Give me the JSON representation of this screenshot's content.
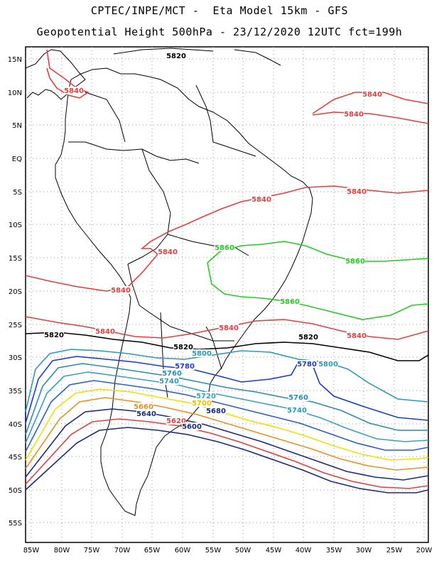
{
  "title_line1": "CPTEC/INPE/MCT -  Eta Model 15km - GFS",
  "title_line2": "Geopotential Height 500hPa - 23/12/2020 12UTC fct=199h",
  "lat_labels": [
    "15N",
    "10N",
    "5N",
    "EQ",
    "5S",
    "10S",
    "15S",
    "20S",
    "25S",
    "30S",
    "35S",
    "40S",
    "45S",
    "50S",
    "55S"
  ],
  "lon_labels": [
    "85W",
    "80W",
    "75W",
    "70W",
    "65W",
    "60W",
    "55W",
    "50W",
    "45W",
    "40W",
    "35W",
    "30W",
    "25W",
    "20W"
  ],
  "contour_labels": [
    {
      "text": "5820",
      "color": "#000000"
    },
    {
      "text": "5840",
      "color": "#e04040"
    },
    {
      "text": "5840",
      "color": "#e04040"
    },
    {
      "text": "5840",
      "color": "#e04040"
    },
    {
      "text": "5840",
      "color": "#e04040"
    },
    {
      "text": "5840",
      "color": "#e04040"
    },
    {
      "text": "5840",
      "color": "#e04040"
    },
    {
      "text": "5840",
      "color": "#e04040"
    },
    {
      "text": "5840",
      "color": "#e04040"
    },
    {
      "text": "5840",
      "color": "#e04040"
    },
    {
      "text": "5840",
      "color": "#e04040"
    },
    {
      "text": "5860",
      "color": "#22cc22"
    },
    {
      "text": "5860",
      "color": "#22cc22"
    },
    {
      "text": "5860",
      "color": "#22cc22"
    },
    {
      "text": "5820",
      "color": "#000000"
    },
    {
      "text": "5820",
      "color": "#000000"
    },
    {
      "text": "5820",
      "color": "#000000"
    },
    {
      "text": "5800",
      "color": "#2a9ab8"
    },
    {
      "text": "5800",
      "color": "#2a9ab8"
    },
    {
      "text": "5780",
      "color": "#1a3cd0"
    },
    {
      "text": "5780",
      "color": "#1a3cd0"
    },
    {
      "text": "5760",
      "color": "#2a8cb0"
    },
    {
      "text": "5760",
      "color": "#2a8cb0"
    },
    {
      "text": "5740",
      "color": "#2a9ab8"
    },
    {
      "text": "5740",
      "color": "#2a9ab8"
    },
    {
      "text": "5720",
      "color": "#3aa0c0"
    },
    {
      "text": "5700",
      "color": "#e8c000"
    },
    {
      "text": "5660",
      "color": "#e89020"
    },
    {
      "text": "5640",
      "color": "#1a2a80"
    },
    {
      "text": "5680",
      "color": "#1a2a80"
    },
    {
      "text": "5620",
      "color": "#e04040"
    },
    {
      "text": "5600",
      "color": "#1a2a80"
    }
  ],
  "colors": {
    "c5860": "#22cc22",
    "c5840": "#e04040",
    "c5820": "#000000",
    "c5800": "#2a9ab8",
    "c5780": "#1a3cd0",
    "c5760": "#2a8cb0",
    "c5740": "#3aa0c0",
    "c5700": "#f0e000",
    "c5680": "#e89020",
    "c5640": "#1a2a80",
    "c5620": "#e04040",
    "c5600": "#1a2a80",
    "coast": "#000000",
    "grid": "#999999"
  }
}
